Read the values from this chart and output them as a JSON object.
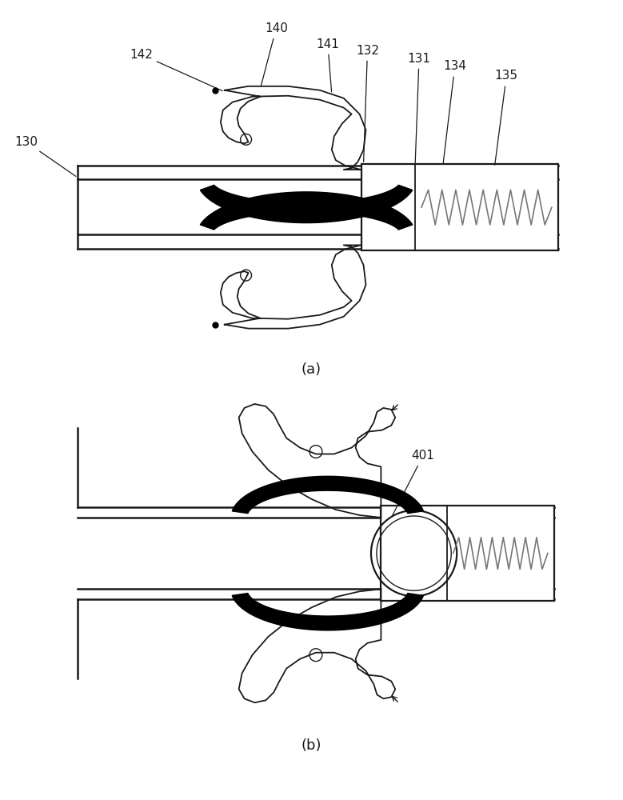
{
  "fig_width": 7.79,
  "fig_height": 10.0,
  "dpi": 100,
  "bg_color": "#ffffff",
  "lc": "#1a1a1a",
  "spring_color": "#777777",
  "caption_a": "(a)",
  "caption_b": "(b)",
  "font_size": 11,
  "lw": 1.3,
  "lw_thick": 3.5
}
